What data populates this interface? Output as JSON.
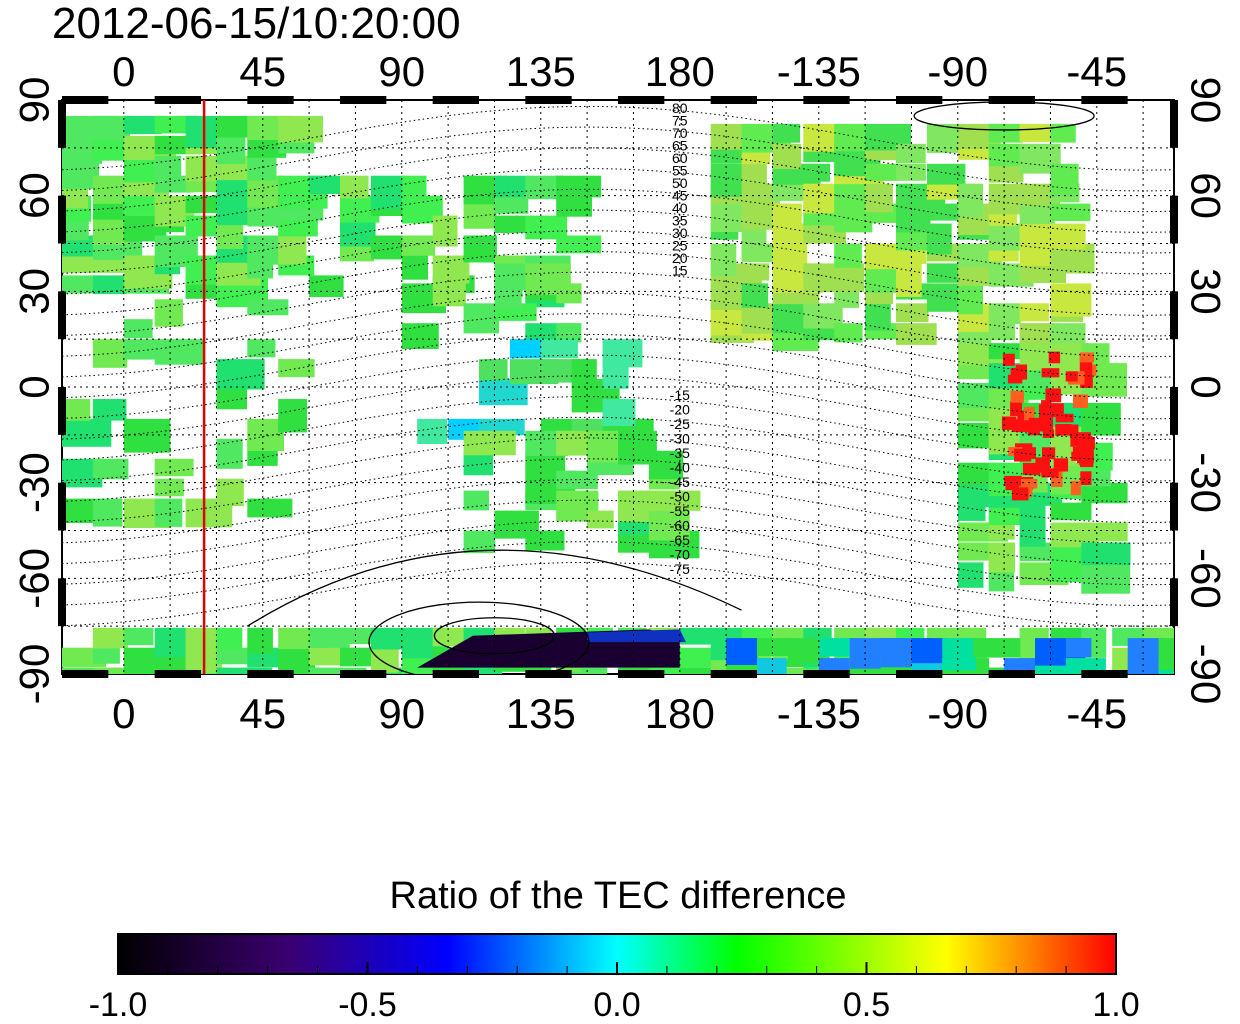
{
  "title": "2012-06-15/10:20:00",
  "map": {
    "top_lon_labels": [
      "0",
      "45",
      "90",
      "135",
      "180",
      "-135",
      "-90",
      "-45"
    ],
    "bottom_lon_labels": [
      "0",
      "45",
      "90",
      "135",
      "180",
      "-135",
      "-90",
      "-45"
    ],
    "left_lat_labels": [
      "90",
      "60",
      "30",
      "0",
      "-30",
      "-60",
      "-90"
    ],
    "right_lat_labels": [
      "90",
      "60",
      "30",
      "0",
      "-30",
      "-60",
      "-90"
    ],
    "lon_range": [
      -20,
      340
    ],
    "lat_range": [
      -90,
      90
    ],
    "meridian_marker": {
      "lon": 26,
      "color": "#e00000"
    },
    "contour_labels_north": [
      "80",
      "75",
      "70",
      "65",
      "60",
      "55",
      "50",
      "45",
      "40",
      "35",
      "30",
      "25",
      "20",
      "15"
    ],
    "contour_labels_south": [
      "-15",
      "-20",
      "-25",
      "-30",
      "-35",
      "-40",
      "-45",
      "-50",
      "-55",
      "-60",
      "-65",
      "-70",
      "-75"
    ]
  },
  "colorbar": {
    "title": "Ratio of the TEC difference",
    "min": -1.0,
    "max": 1.0,
    "tick_labels": [
      "-1.0",
      "-0.5",
      "0.0",
      "0.5",
      "1.0"
    ],
    "colors": [
      "#000000",
      "#3a0070",
      "#0000ff",
      "#00ffff",
      "#00ff00",
      "#ffff00",
      "#ff0000"
    ]
  }
}
